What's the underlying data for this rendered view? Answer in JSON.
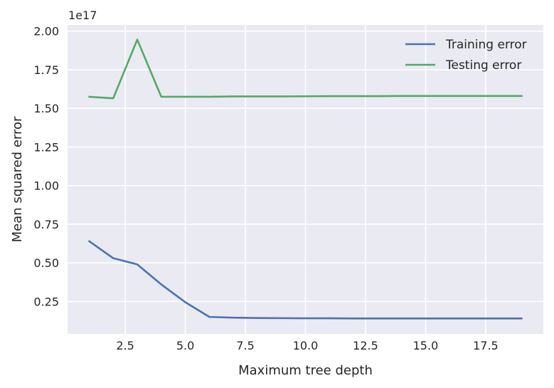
{
  "chart_data": {
    "type": "line",
    "title": "",
    "xlabel": "Maximum tree depth",
    "ylabel": "Mean squared error",
    "y_offset_label": "1e17",
    "xlim": [
      0.1,
      19.9
    ],
    "ylim": [
      0.04,
      2.04
    ],
    "x_ticks": [
      2.5,
      5.0,
      7.5,
      10.0,
      12.5,
      15.0,
      17.5
    ],
    "x_tick_labels": [
      "2.5",
      "5.0",
      "7.5",
      "10.0",
      "12.5",
      "15.0",
      "17.5"
    ],
    "y_ticks": [
      0.25,
      0.5,
      0.75,
      1.0,
      1.25,
      1.5,
      1.75,
      2.0
    ],
    "y_tick_labels": [
      "0.25",
      "0.50",
      "0.75",
      "1.00",
      "1.25",
      "1.50",
      "1.75",
      "2.00"
    ],
    "grid": true,
    "legend_position": "top-right",
    "x": [
      1,
      2,
      3,
      4,
      5,
      6,
      7,
      8,
      9,
      10,
      11,
      12,
      13,
      14,
      15,
      16,
      17,
      18,
      19
    ],
    "series": [
      {
        "name": "Training error",
        "color": "#4c72b0",
        "values": [
          0.64,
          0.53,
          0.49,
          0.36,
          0.245,
          0.15,
          0.145,
          0.143,
          0.142,
          0.141,
          0.141,
          0.14,
          0.14,
          0.14,
          0.14,
          0.14,
          0.14,
          0.14,
          0.14
        ]
      },
      {
        "name": "Testing error",
        "color": "#55a868",
        "values": [
          1.575,
          1.565,
          1.945,
          1.575,
          1.575,
          1.575,
          1.577,
          1.577,
          1.577,
          1.578,
          1.579,
          1.579,
          1.579,
          1.58,
          1.58,
          1.58,
          1.58,
          1.58,
          1.58
        ]
      }
    ]
  }
}
